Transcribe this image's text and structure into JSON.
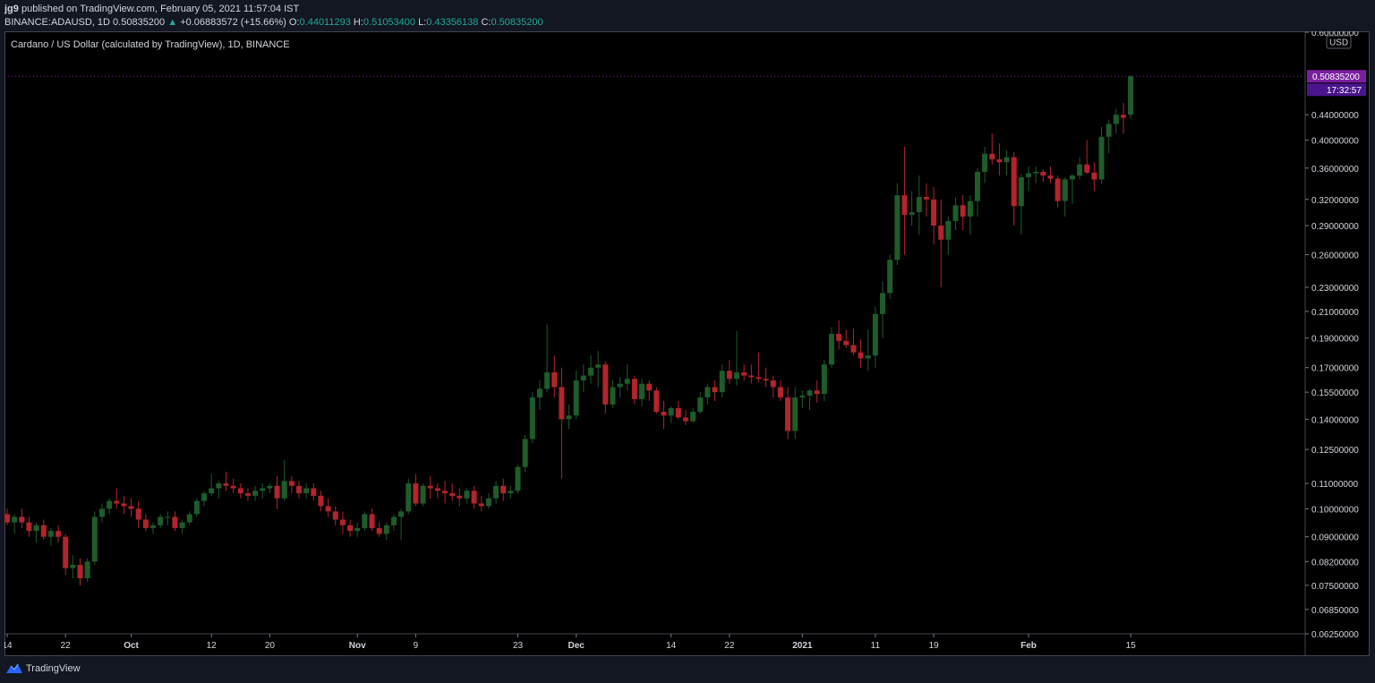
{
  "header": {
    "author": "jg9",
    "published_text": "published on TradingView.com, February 05, 2021 11:57:04 IST",
    "symbol_line": "BINANCE:ADAUSD, 1D",
    "last_price": "0.50835200",
    "change": "+0.06883572 (+15.66%)",
    "o_label": "O:",
    "o": "0.44011293",
    "h_label": "H:",
    "h": "0.51053400",
    "l_label": "L:",
    "l": "0.43356138",
    "c_label": "C:",
    "c": "0.50835200"
  },
  "footer": {
    "brand": "TradingView"
  },
  "colors": {
    "up": "#26a69a",
    "candle_up": "#1e5c2a",
    "candle_down": "#b3242c",
    "price_badge": "#7b1fa2",
    "background": "#000000"
  },
  "chart_data": {
    "type": "candlestick",
    "title": "Cardano / US Dollar (calculated by TradingView), 1D, BINANCE",
    "currency": "USD",
    "y_scale": "log",
    "ylim": [
      0.0625,
      0.6
    ],
    "y_ticks": [
      "0.60000000",
      "0.44000000",
      "0.40000000",
      "0.36000000",
      "0.32000000",
      "0.29000000",
      "0.26000000",
      "0.23000000",
      "0.21000000",
      "0.19000000",
      "0.17000000",
      "0.15500000",
      "0.14000000",
      "0.12500000",
      "0.11000000",
      "0.10000000",
      "0.09000000",
      "0.08200000",
      "0.07500000",
      "0.06850000",
      "0.06250000"
    ],
    "x_ticks": [
      "14",
      "22",
      "Oct",
      "12",
      "20",
      "Nov",
      "9",
      "23",
      "Dec",
      "14",
      "22",
      "2021",
      "11",
      "19",
      "Feb",
      "15"
    ],
    "last_price_label": "0.50835200",
    "countdown": "17:32:57",
    "date_range": [
      "2020-09-14",
      "2021-02-05"
    ],
    "ohlc": [
      [
        0.098,
        0.1,
        0.094,
        0.095
      ],
      [
        0.095,
        0.098,
        0.091,
        0.097
      ],
      [
        0.097,
        0.1,
        0.093,
        0.095
      ],
      [
        0.095,
        0.097,
        0.09,
        0.092
      ],
      [
        0.092,
        0.095,
        0.088,
        0.094
      ],
      [
        0.094,
        0.096,
        0.089,
        0.09
      ],
      [
        0.09,
        0.093,
        0.087,
        0.092
      ],
      [
        0.092,
        0.094,
        0.088,
        0.09
      ],
      [
        0.09,
        0.091,
        0.078,
        0.08
      ],
      [
        0.08,
        0.084,
        0.077,
        0.081
      ],
      [
        0.081,
        0.083,
        0.075,
        0.077
      ],
      [
        0.077,
        0.083,
        0.076,
        0.082
      ],
      [
        0.082,
        0.099,
        0.081,
        0.097
      ],
      [
        0.097,
        0.102,
        0.095,
        0.1
      ],
      [
        0.1,
        0.104,
        0.098,
        0.103
      ],
      [
        0.103,
        0.108,
        0.1,
        0.102
      ],
      [
        0.102,
        0.105,
        0.098,
        0.101
      ],
      [
        0.101,
        0.104,
        0.097,
        0.1
      ],
      [
        0.1,
        0.103,
        0.093,
        0.096
      ],
      [
        0.096,
        0.098,
        0.092,
        0.093
      ],
      [
        0.093,
        0.095,
        0.091,
        0.094
      ],
      [
        0.094,
        0.098,
        0.093,
        0.097
      ],
      [
        0.097,
        0.099,
        0.094,
        0.097
      ],
      [
        0.097,
        0.099,
        0.092,
        0.093
      ],
      [
        0.093,
        0.096,
        0.091,
        0.095
      ],
      [
        0.095,
        0.099,
        0.094,
        0.098
      ],
      [
        0.098,
        0.104,
        0.097,
        0.103
      ],
      [
        0.103,
        0.107,
        0.101,
        0.106
      ],
      [
        0.106,
        0.114,
        0.105,
        0.108
      ],
      [
        0.108,
        0.111,
        0.104,
        0.11
      ],
      [
        0.11,
        0.115,
        0.107,
        0.109
      ],
      [
        0.109,
        0.112,
        0.106,
        0.108
      ],
      [
        0.108,
        0.11,
        0.104,
        0.106
      ],
      [
        0.106,
        0.108,
        0.103,
        0.105
      ],
      [
        0.105,
        0.109,
        0.103,
        0.107
      ],
      [
        0.107,
        0.11,
        0.104,
        0.108
      ],
      [
        0.108,
        0.11,
        0.106,
        0.109
      ],
      [
        0.109,
        0.113,
        0.1,
        0.104
      ],
      [
        0.104,
        0.12,
        0.103,
        0.111
      ],
      [
        0.111,
        0.113,
        0.106,
        0.109
      ],
      [
        0.109,
        0.111,
        0.104,
        0.106
      ],
      [
        0.106,
        0.11,
        0.104,
        0.108
      ],
      [
        0.108,
        0.11,
        0.103,
        0.105
      ],
      [
        0.105,
        0.107,
        0.099,
        0.101
      ],
      [
        0.101,
        0.104,
        0.097,
        0.099
      ],
      [
        0.099,
        0.101,
        0.094,
        0.096
      ],
      [
        0.096,
        0.099,
        0.091,
        0.094
      ],
      [
        0.094,
        0.096,
        0.09,
        0.092
      ],
      [
        0.092,
        0.095,
        0.09,
        0.093
      ],
      [
        0.093,
        0.099,
        0.092,
        0.098
      ],
      [
        0.098,
        0.1,
        0.092,
        0.093
      ],
      [
        0.093,
        0.095,
        0.09,
        0.091
      ],
      [
        0.091,
        0.095,
        0.089,
        0.094
      ],
      [
        0.094,
        0.098,
        0.092,
        0.097
      ],
      [
        0.097,
        0.1,
        0.089,
        0.099
      ],
      [
        0.099,
        0.112,
        0.098,
        0.11
      ],
      [
        0.11,
        0.114,
        0.101,
        0.102
      ],
      [
        0.102,
        0.11,
        0.101,
        0.109
      ],
      [
        0.109,
        0.113,
        0.104,
        0.108
      ],
      [
        0.108,
        0.11,
        0.104,
        0.107
      ],
      [
        0.107,
        0.111,
        0.102,
        0.106
      ],
      [
        0.106,
        0.11,
        0.103,
        0.105
      ],
      [
        0.105,
        0.108,
        0.101,
        0.104
      ],
      [
        0.104,
        0.108,
        0.102,
        0.107
      ],
      [
        0.107,
        0.109,
        0.1,
        0.102
      ],
      [
        0.102,
        0.105,
        0.099,
        0.101
      ],
      [
        0.101,
        0.106,
        0.1,
        0.104
      ],
      [
        0.104,
        0.111,
        0.102,
        0.109
      ],
      [
        0.109,
        0.112,
        0.103,
        0.106
      ],
      [
        0.106,
        0.109,
        0.104,
        0.107
      ],
      [
        0.107,
        0.118,
        0.106,
        0.117
      ],
      [
        0.117,
        0.132,
        0.115,
        0.13
      ],
      [
        0.13,
        0.155,
        0.128,
        0.152
      ],
      [
        0.152,
        0.162,
        0.145,
        0.157
      ],
      [
        0.157,
        0.2,
        0.155,
        0.167
      ],
      [
        0.167,
        0.178,
        0.152,
        0.158
      ],
      [
        0.158,
        0.17,
        0.112,
        0.14
      ],
      [
        0.14,
        0.148,
        0.135,
        0.142
      ],
      [
        0.142,
        0.168,
        0.14,
        0.162
      ],
      [
        0.162,
        0.172,
        0.155,
        0.165
      ],
      [
        0.165,
        0.178,
        0.16,
        0.17
      ],
      [
        0.17,
        0.181,
        0.158,
        0.172
      ],
      [
        0.172,
        0.174,
        0.143,
        0.148
      ],
      [
        0.148,
        0.162,
        0.146,
        0.158
      ],
      [
        0.158,
        0.164,
        0.152,
        0.16
      ],
      [
        0.16,
        0.172,
        0.156,
        0.163
      ],
      [
        0.163,
        0.165,
        0.148,
        0.151
      ],
      [
        0.151,
        0.163,
        0.147,
        0.16
      ],
      [
        0.16,
        0.162,
        0.15,
        0.156
      ],
      [
        0.156,
        0.158,
        0.143,
        0.144
      ],
      [
        0.144,
        0.15,
        0.135,
        0.142
      ],
      [
        0.142,
        0.147,
        0.138,
        0.146
      ],
      [
        0.146,
        0.15,
        0.14,
        0.141
      ],
      [
        0.141,
        0.145,
        0.137,
        0.139
      ],
      [
        0.139,
        0.146,
        0.138,
        0.144
      ],
      [
        0.144,
        0.155,
        0.143,
        0.152
      ],
      [
        0.152,
        0.16,
        0.148,
        0.158
      ],
      [
        0.158,
        0.162,
        0.15,
        0.155
      ],
      [
        0.155,
        0.172,
        0.152,
        0.168
      ],
      [
        0.168,
        0.175,
        0.16,
        0.163
      ],
      [
        0.163,
        0.195,
        0.159,
        0.167
      ],
      [
        0.167,
        0.172,
        0.162,
        0.165
      ],
      [
        0.165,
        0.172,
        0.16,
        0.164
      ],
      [
        0.164,
        0.18,
        0.161,
        0.163
      ],
      [
        0.163,
        0.17,
        0.158,
        0.162
      ],
      [
        0.162,
        0.165,
        0.152,
        0.158
      ],
      [
        0.158,
        0.162,
        0.15,
        0.152
      ],
      [
        0.152,
        0.158,
        0.13,
        0.134
      ],
      [
        0.134,
        0.158,
        0.13,
        0.152
      ],
      [
        0.152,
        0.156,
        0.146,
        0.153
      ],
      [
        0.153,
        0.157,
        0.145,
        0.156
      ],
      [
        0.156,
        0.162,
        0.149,
        0.154
      ],
      [
        0.154,
        0.175,
        0.15,
        0.172
      ],
      [
        0.172,
        0.198,
        0.17,
        0.193
      ],
      [
        0.193,
        0.203,
        0.182,
        0.188
      ],
      [
        0.188,
        0.196,
        0.183,
        0.185
      ],
      [
        0.185,
        0.197,
        0.178,
        0.18
      ],
      [
        0.18,
        0.189,
        0.17,
        0.176
      ],
      [
        0.176,
        0.196,
        0.168,
        0.178
      ],
      [
        0.178,
        0.214,
        0.17,
        0.208
      ],
      [
        0.208,
        0.235,
        0.19,
        0.225
      ],
      [
        0.225,
        0.26,
        0.22,
        0.255
      ],
      [
        0.255,
        0.34,
        0.25,
        0.325
      ],
      [
        0.325,
        0.39,
        0.26,
        0.302
      ],
      [
        0.302,
        0.33,
        0.29,
        0.305
      ],
      [
        0.305,
        0.35,
        0.28,
        0.323
      ],
      [
        0.323,
        0.34,
        0.3,
        0.32
      ],
      [
        0.32,
        0.335,
        0.27,
        0.29
      ],
      [
        0.29,
        0.32,
        0.23,
        0.275
      ],
      [
        0.275,
        0.3,
        0.26,
        0.295
      ],
      [
        0.295,
        0.322,
        0.285,
        0.313
      ],
      [
        0.313,
        0.325,
        0.285,
        0.3
      ],
      [
        0.3,
        0.325,
        0.28,
        0.318
      ],
      [
        0.318,
        0.36,
        0.3,
        0.355
      ],
      [
        0.355,
        0.39,
        0.34,
        0.38
      ],
      [
        0.38,
        0.41,
        0.365,
        0.372
      ],
      [
        0.372,
        0.395,
        0.35,
        0.368
      ],
      [
        0.368,
        0.385,
        0.35,
        0.375
      ],
      [
        0.375,
        0.382,
        0.29,
        0.312
      ],
      [
        0.312,
        0.352,
        0.28,
        0.348
      ],
      [
        0.348,
        0.362,
        0.33,
        0.353
      ],
      [
        0.353,
        0.362,
        0.34,
        0.355
      ],
      [
        0.355,
        0.358,
        0.342,
        0.35
      ],
      [
        0.35,
        0.362,
        0.34,
        0.346
      ],
      [
        0.346,
        0.35,
        0.31,
        0.318
      ],
      [
        0.318,
        0.348,
        0.3,
        0.345
      ],
      [
        0.345,
        0.352,
        0.315,
        0.35
      ],
      [
        0.35,
        0.375,
        0.345,
        0.365
      ],
      [
        0.365,
        0.4,
        0.352,
        0.354
      ],
      [
        0.354,
        0.368,
        0.33,
        0.345
      ],
      [
        0.345,
        0.42,
        0.34,
        0.405
      ],
      [
        0.405,
        0.432,
        0.38,
        0.425
      ],
      [
        0.425,
        0.45,
        0.41,
        0.44
      ],
      [
        0.44,
        0.46,
        0.41,
        0.435
      ],
      [
        0.44011293,
        0.510534,
        0.43356138,
        0.508352
      ]
    ]
  }
}
